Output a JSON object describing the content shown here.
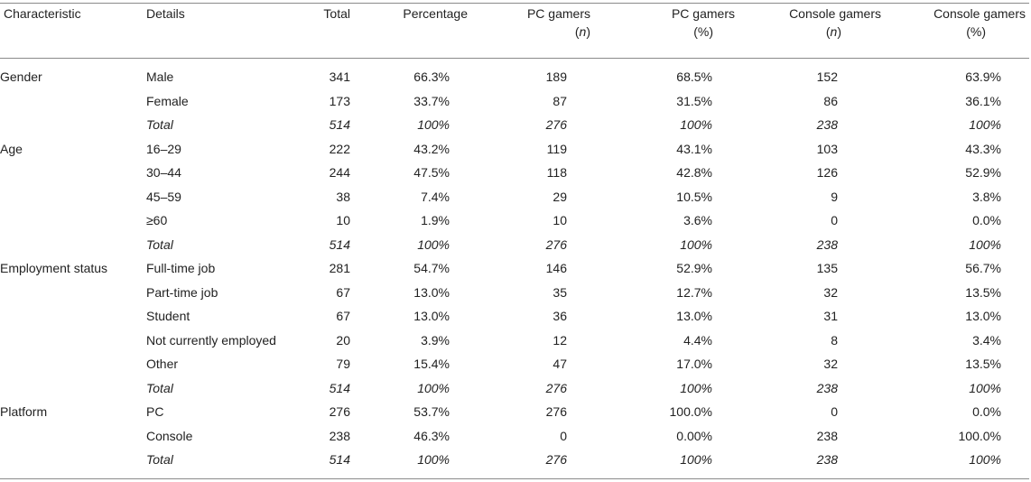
{
  "header": {
    "characteristic": "Characteristic",
    "details": "Details",
    "total": "Total",
    "percentage": "Percentage",
    "pc_n_top": "PC gamers",
    "pc_n_sub": "n",
    "pc_pct_top": "PC gamers",
    "pc_pct_sub": "(%)",
    "console_n_top": "Console gamers",
    "console_n_sub": "n",
    "console_pct_top": "Console gamers",
    "console_pct_sub": "(%)"
  },
  "groups": [
    {
      "name": "Gender",
      "rows": [
        {
          "detail": "Male",
          "total": "341",
          "pct": "66.3%",
          "pc_n": "189",
          "pc_pct": "68.5%",
          "con_n": "152",
          "con_pct": "63.9%"
        },
        {
          "detail": "Female",
          "total": "173",
          "pct": "33.7%",
          "pc_n": "87",
          "pc_pct": "31.5%",
          "con_n": "86",
          "con_pct": "36.1%"
        },
        {
          "detail": "Total",
          "total": "514",
          "pct": "100%",
          "pc_n": "276",
          "pc_pct": "100%",
          "con_n": "238",
          "con_pct": "100%"
        }
      ]
    },
    {
      "name": "Age",
      "rows": [
        {
          "detail": "16–29",
          "total": "222",
          "pct": "43.2%",
          "pc_n": "119",
          "pc_pct": "43.1%",
          "con_n": "103",
          "con_pct": "43.3%"
        },
        {
          "detail": "30–44",
          "total": "244",
          "pct": "47.5%",
          "pc_n": "118",
          "pc_pct": "42.8%",
          "con_n": "126",
          "con_pct": "52.9%"
        },
        {
          "detail": "45–59",
          "total": "38",
          "pct": "7.4%",
          "pc_n": "29",
          "pc_pct": "10.5%",
          "con_n": "9",
          "con_pct": "3.8%"
        },
        {
          "detail": "≥60",
          "total": "10",
          "pct": "1.9%",
          "pc_n": "10",
          "pc_pct": "3.6%",
          "con_n": "0",
          "con_pct": "0.0%"
        },
        {
          "detail": "Total",
          "total": "514",
          "pct": "100%",
          "pc_n": "276",
          "pc_pct": "100%",
          "con_n": "238",
          "con_pct": "100%"
        }
      ]
    },
    {
      "name": "Employment status",
      "rows": [
        {
          "detail": "Full-time job",
          "total": "281",
          "pct": "54.7%",
          "pc_n": "146",
          "pc_pct": "52.9%",
          "con_n": "135",
          "con_pct": "56.7%"
        },
        {
          "detail": "Part-time job",
          "total": "67",
          "pct": "13.0%",
          "pc_n": "35",
          "pc_pct": "12.7%",
          "con_n": "32",
          "con_pct": "13.5%"
        },
        {
          "detail": "Student",
          "total": "67",
          "pct": "13.0%",
          "pc_n": "36",
          "pc_pct": "13.0%",
          "con_n": "31",
          "con_pct": "13.0%"
        },
        {
          "detail": "Not currently employed",
          "total": "20",
          "pct": "3.9%",
          "pc_n": "12",
          "pc_pct": "4.4%",
          "con_n": "8",
          "con_pct": "3.4%"
        },
        {
          "detail": "Other",
          "total": "79",
          "pct": "15.4%",
          "pc_n": "47",
          "pc_pct": "17.0%",
          "con_n": "32",
          "con_pct": "13.5%"
        },
        {
          "detail": "Total",
          "total": "514",
          "pct": "100%",
          "pc_n": "276",
          "pc_pct": "100%",
          "con_n": "238",
          "con_pct": "100%"
        }
      ]
    },
    {
      "name": "Platform",
      "rows": [
        {
          "detail": "PC",
          "total": "276",
          "pct": "53.7%",
          "pc_n": "276",
          "pc_pct": "100.0%",
          "con_n": "0",
          "con_pct": "0.0%"
        },
        {
          "detail": "Console",
          "total": "238",
          "pct": "46.3%",
          "pc_n": "0",
          "pc_pct": "0.00%",
          "con_n": "238",
          "con_pct": "100.0%"
        },
        {
          "detail": "Total",
          "total": "514",
          "pct": "100%",
          "pc_n": "276",
          "pc_pct": "100%",
          "con_n": "238",
          "con_pct": "100%"
        }
      ]
    }
  ]
}
